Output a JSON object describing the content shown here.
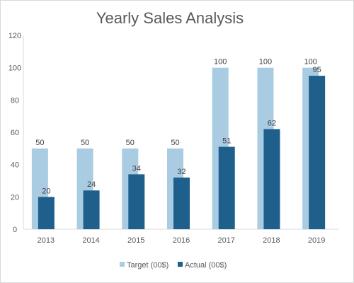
{
  "chart_data": {
    "type": "bar",
    "title": "Yearly Sales Analysis",
    "categories": [
      "2013",
      "2014",
      "2015",
      "2016",
      "2017",
      "2018",
      "2019"
    ],
    "series": [
      {
        "name": "Target (00$)",
        "values": [
          50,
          50,
          50,
          50,
          100,
          100,
          100
        ],
        "color": "#a9cce3"
      },
      {
        "name": "Actual (00$)",
        "values": [
          20,
          24,
          34,
          32,
          51,
          62,
          95
        ],
        "color": "#1f5f8b"
      }
    ],
    "ylim": [
      0,
      120
    ],
    "yticks": [
      0,
      20,
      40,
      60,
      80,
      100,
      120
    ],
    "grid": false,
    "legend_position": "bottom",
    "data_labels": true
  }
}
